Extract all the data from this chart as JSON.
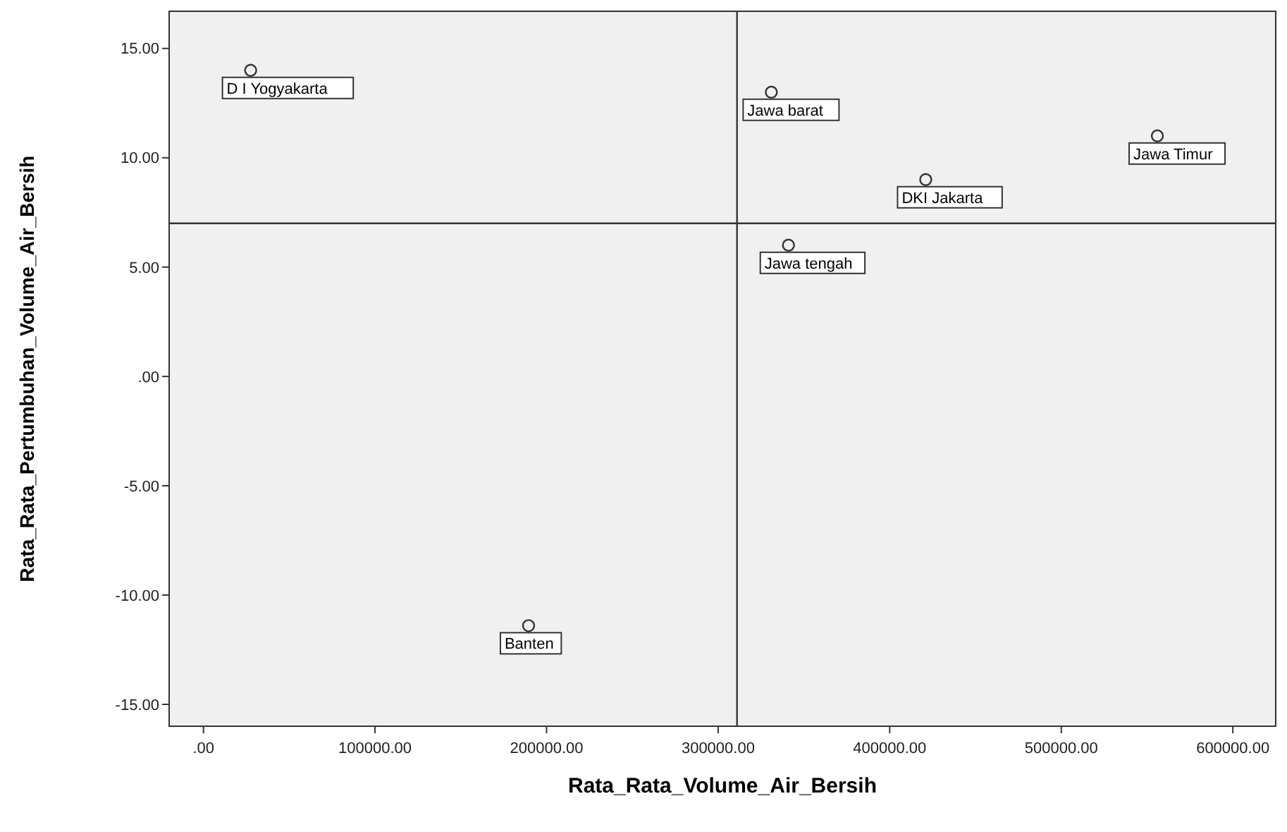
{
  "chart_data": {
    "type": "scatter",
    "xlabel": "Rata_Rata_Volume_Air_Bersih",
    "ylabel": "Rata_Rata_Pertumbuhan_Volume_Air_Bersih",
    "x": [
      27500,
      331000,
      556000,
      421000,
      341000,
      189500
    ],
    "series": [
      {
        "color": "#333333",
        "values": [
          14,
          13,
          11,
          9,
          6,
          -11.4
        ]
      }
    ],
    "marker": "circle",
    "annotations": [
      {
        "text": "D I Yogyakarta",
        "x": 27500,
        "y": 14
      },
      {
        "text": "Jawa barat",
        "x": 331000,
        "y": 13
      },
      {
        "text": "Jawa Timur",
        "x": 556000,
        "y": 11
      },
      {
        "text": "DKI Jakarta",
        "x": 421000,
        "y": 9
      },
      {
        "text": "Jawa tengah",
        "x": 341000,
        "y": 6
      },
      {
        "text": "Banten",
        "x": 189500,
        "y": -11.4
      }
    ],
    "ref_lines": [
      {
        "axis": "y",
        "value": 7,
        "color": "#333333"
      },
      {
        "axis": "x",
        "value": 311000,
        "color": "#333333"
      }
    ],
    "xlim": [
      -20000,
      625000
    ],
    "ylim": [
      -16,
      16.7
    ],
    "xticks": [
      {
        "value": 0,
        "label": ".00"
      },
      {
        "value": 100000,
        "label": "100000.00"
      },
      {
        "value": 200000,
        "label": "200000.00"
      },
      {
        "value": 300000,
        "label": "300000.00"
      },
      {
        "value": 400000,
        "label": "400000.00"
      },
      {
        "value": 500000,
        "label": "500000.00"
      },
      {
        "value": 600000,
        "label": "600000.00"
      }
    ],
    "yticks": [
      {
        "value": -15,
        "label": "-15.00"
      },
      {
        "value": -10,
        "label": "-10.00"
      },
      {
        "value": -5,
        "label": "-5.00"
      },
      {
        "value": 0,
        "label": ".00"
      },
      {
        "value": 5,
        "label": "5.00"
      },
      {
        "value": 10,
        "label": "10.00"
      },
      {
        "value": 15,
        "label": "15.00"
      }
    ],
    "grid": false
  }
}
